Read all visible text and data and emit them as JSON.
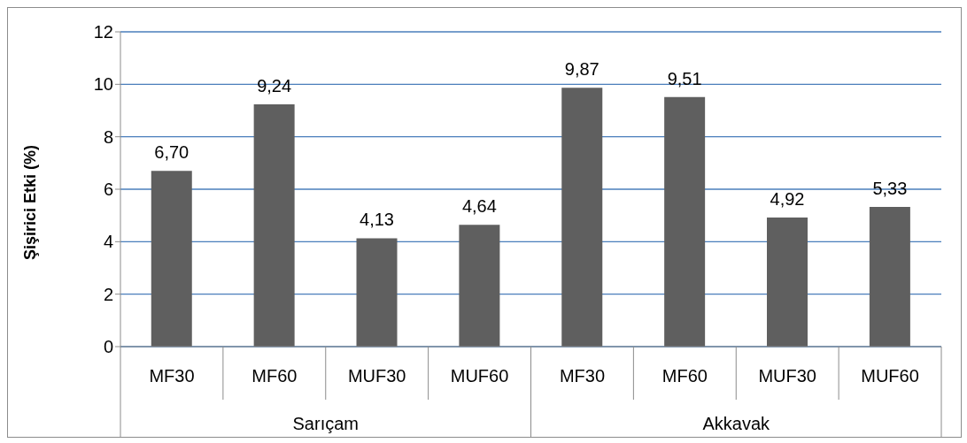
{
  "chart_data": {
    "type": "bar",
    "ylabel": "Şişirici Etki (%)",
    "categories": [
      "MF30",
      "MF60",
      "MUF30",
      "MUF60",
      "MF30",
      "MF60",
      "MUF30",
      "MUF60"
    ],
    "values": [
      6.7,
      9.24,
      4.13,
      4.64,
      9.87,
      9.51,
      4.92,
      5.33
    ],
    "value_labels": [
      "6,70",
      "9,24",
      "4,13",
      "4,64",
      "9,87",
      "9,51",
      "4,92",
      "5,33"
    ],
    "color": "#5f5f5f",
    "ylim": [
      0,
      12
    ],
    "yticks": [
      0,
      2,
      4,
      6,
      8,
      10,
      12
    ],
    "grid": "y",
    "annotations": [
      "Sarıçam",
      "Akkavak"
    ]
  }
}
